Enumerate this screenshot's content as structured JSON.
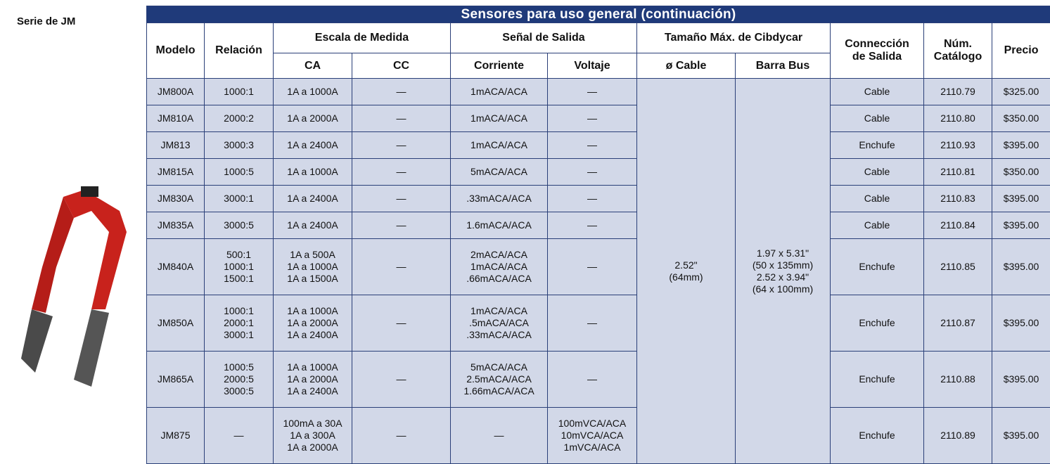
{
  "side": {
    "label": "Serie de JM"
  },
  "table": {
    "title": "Sensores para uso general (continuación)",
    "headers": {
      "modelo": "Modelo",
      "relacion": "Relación",
      "escala": "Escala de Medida",
      "senal": "Señal de Salida",
      "tamano": "Tamaño Máx. de Cibdycar",
      "conexion": "Connección\nde Salida",
      "catalogo": "Núm.\nCatálogo",
      "precio": "Precio",
      "ca": "CA",
      "cc": "CC",
      "corriente": "Corriente",
      "voltaje": "Voltaje",
      "cable": "ø Cable",
      "barra": "Barra Bus"
    },
    "cable": "2.52\"\n(64mm)",
    "barra": "1.97 x 5.31\"\n(50 x 135mm)\n2.52 x 3.94\"\n(64 x 100mm)",
    "rows": [
      [
        "JM800A",
        "1000:1",
        "1A a 1000A",
        "—",
        "1mACA/ACA",
        "—",
        "Cable",
        "2110.79",
        "$325.00"
      ],
      [
        "JM810A",
        "2000:2",
        "1A a 2000A",
        "—",
        "1mACA/ACA",
        "—",
        "Cable",
        "2110.80",
        "$350.00"
      ],
      [
        "JM813",
        "3000:3",
        "1A a 2400A",
        "—",
        "1mACA/ACA",
        "—",
        "Enchufe",
        "2110.93",
        "$395.00"
      ],
      [
        "JM815A",
        "1000:5",
        "1A a 1000A",
        "—",
        "5mACA/ACA",
        "—",
        "Cable",
        "2110.81",
        "$350.00"
      ],
      [
        "JM830A",
        "3000:1",
        "1A a 2400A",
        "—",
        ".33mACA/ACA",
        "—",
        "Cable",
        "2110.83",
        "$395.00"
      ],
      [
        "JM835A",
        "3000:5",
        "1A a 2400A",
        "—",
        "1.6mACA/ACA",
        "—",
        "Cable",
        "2110.84",
        "$395.00"
      ],
      [
        "JM840A",
        "500:1\n1000:1\n1500:1",
        "1A a 500A\n1A a 1000A\n1A a 1500A",
        "—",
        "2mACA/ACA\n1mACA/ACA\n.66mACA/ACA",
        "—",
        "Enchufe",
        "2110.85",
        "$395.00"
      ],
      [
        "JM850A",
        "1000:1\n2000:1\n3000:1",
        "1A a 1000A\n1A a 2000A\n1A a 2400A",
        "—",
        "1mACA/ACA\n.5mACA/ACA\n.33mACA/ACA",
        "—",
        "Enchufe",
        "2110.87",
        "$395.00"
      ],
      [
        "JM865A",
        "1000:5\n2000:5\n3000:5",
        "1A a 1000A\n1A a 2000A\n1A a 2400A",
        "—",
        "5mACA/ACA\n2.5mACA/ACA\n1.66mACA/ACA",
        "—",
        "Enchufe",
        "2110.88",
        "$395.00"
      ],
      [
        "JM875",
        "—",
        "100mA a 30A\n1A a 300A\n1A a 2000A",
        "—",
        "—",
        "100mVCA/ACA\n10mVCA/ACA\n1mVCA/ACA",
        "Enchufe",
        "2110.89",
        "$395.00"
      ]
    ]
  }
}
